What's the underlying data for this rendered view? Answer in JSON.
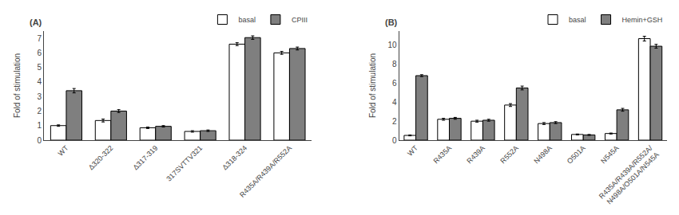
{
  "chart_data": [
    {
      "type": "bar",
      "label": "(A)",
      "categories": [
        "WT",
        "Δ320-322",
        "Δ317-319",
        "317SVTTV321",
        "Δ318-324",
        "R435A/R439A/R552A"
      ],
      "series": [
        {
          "name": "basal",
          "color": "#ffffff",
          "values": [
            1.0,
            1.35,
            0.85,
            0.6,
            6.6,
            6.0
          ],
          "errors": [
            0.05,
            0.1,
            0.05,
            0.05,
            0.1,
            0.1
          ]
        },
        {
          "name": "CPIII",
          "color": "#7f7f7f",
          "values": [
            3.4,
            2.0,
            0.95,
            0.65,
            7.05,
            6.3
          ],
          "errors": [
            0.15,
            0.1,
            0.05,
            0.05,
            0.12,
            0.1
          ]
        }
      ],
      "ylabel": "Fold of stimulation",
      "ylim": [
        0,
        7.5
      ],
      "yticks": [
        0,
        1,
        2,
        3,
        4,
        5,
        6,
        7
      ],
      "legend": "upper right",
      "grid": false
    },
    {
      "type": "bar",
      "label": "(B)",
      "categories": [
        "WT",
        "R435A",
        "R439A",
        "R552A",
        "N498A",
        "O501A",
        "N545A",
        "R435A/R439A/R552A/\nN498A/O501A/N545A"
      ],
      "series": [
        {
          "name": "basal",
          "color": "#ffffff",
          "values": [
            0.5,
            2.2,
            2.0,
            3.7,
            1.75,
            0.6,
            0.7,
            10.7
          ],
          "errors": [
            0.05,
            0.1,
            0.1,
            0.15,
            0.1,
            0.05,
            0.05,
            0.25
          ]
        },
        {
          "name": "Hemin+GSH",
          "color": "#7f7f7f",
          "values": [
            6.8,
            2.3,
            2.1,
            5.5,
            1.85,
            0.55,
            3.2,
            9.9
          ],
          "errors": [
            0.1,
            0.1,
            0.1,
            0.2,
            0.1,
            0.05,
            0.15,
            0.2
          ]
        }
      ],
      "ylabel": "Fold of stimulation",
      "ylim": [
        0,
        11.5
      ],
      "yticks": [
        0,
        2,
        4,
        6,
        8,
        10
      ],
      "legend": "upper right",
      "grid": false
    }
  ]
}
